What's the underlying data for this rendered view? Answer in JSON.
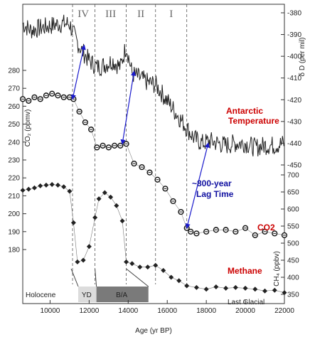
{
  "chart_data": {
    "type": "line",
    "xlabel": "Age (yr BP)",
    "xlim": [
      8600,
      22000
    ],
    "x_ticks": [
      10000,
      12000,
      14000,
      16000,
      18000,
      20000,
      22000
    ],
    "period_lines": [
      11150,
      12300,
      13900,
      15400,
      17000
    ],
    "period_labels": [
      {
        "label": "IV",
        "x": 11700
      },
      {
        "label": "III",
        "x": 13100
      },
      {
        "label": "II",
        "x": 14650
      },
      {
        "label": "I",
        "x": 16200
      }
    ],
    "axes": {
      "dD": {
        "label": "δ D (per mil)",
        "side": "right",
        "ticks": [
          -380,
          -390,
          -400,
          -410,
          -420,
          -430,
          -440,
          -450
        ]
      },
      "co2": {
        "label": "CO₂ (ppmv)",
        "side": "left",
        "ticks": [
          280,
          270,
          260,
          250,
          240,
          230,
          220,
          210,
          200,
          190,
          180
        ]
      },
      "ch4": {
        "label": "CH₄ (ppbv)",
        "side": "right",
        "ticks": [
          700,
          650,
          600,
          550,
          500,
          450,
          400,
          350
        ]
      }
    },
    "series": [
      {
        "name": "Antarctic Temperature",
        "axis": "dD",
        "x": [
          8600,
          9000,
          9500,
          10000,
          10500,
          11000,
          11300,
          11600,
          12000,
          12400,
          12800,
          13200,
          13600,
          13900,
          14200,
          14600,
          15000,
          15400,
          15800,
          16200,
          16600,
          17000,
          17400,
          17800,
          18200,
          18600,
          19000,
          19500,
          20000,
          20500,
          21000,
          21500,
          22000
        ],
        "values": [
          -385,
          -388,
          -387,
          -386,
          -385,
          -385,
          -392,
          -397,
          -402,
          -405,
          -404,
          -402,
          -405,
          -395,
          -408,
          -410,
          -412,
          -413,
          -418,
          -423,
          -428,
          -433,
          -438,
          -440,
          -439,
          -440,
          -441,
          -440,
          -440,
          -442,
          -441,
          -441,
          -440
        ]
      },
      {
        "name": "CO2",
        "axis": "co2",
        "x": [
          8600,
          8900,
          9200,
          9500,
          9800,
          10100,
          10400,
          10700,
          11000,
          11200,
          11500,
          11800,
          12100,
          12400,
          12700,
          13000,
          13300,
          13600,
          13900,
          14300,
          14700,
          15100,
          15500,
          15900,
          16300,
          16700,
          17000,
          17200,
          17500,
          18000,
          18500,
          19000,
          19500,
          20000,
          20500,
          21000,
          21500,
          22000
        ],
        "values": [
          264,
          263,
          265,
          264,
          266,
          267,
          266,
          265,
          265,
          264,
          257,
          251,
          247,
          237,
          238,
          237,
          238,
          238,
          239,
          228,
          226,
          223,
          219,
          214,
          207,
          201,
          192,
          190,
          189,
          190,
          191,
          191,
          190,
          192,
          188,
          190,
          189,
          188
        ]
      },
      {
        "name": "Methane",
        "axis": "ch4",
        "x": [
          8600,
          8900,
          9200,
          9500,
          9800,
          10100,
          10400,
          10700,
          11000,
          11200,
          11400,
          11700,
          12000,
          12300,
          12500,
          12800,
          13100,
          13400,
          13700,
          13900,
          14200,
          14600,
          15000,
          15400,
          15800,
          16200,
          16600,
          17000,
          17500,
          18000,
          18500,
          19000,
          19500,
          20000,
          20500,
          21000,
          21500,
          22000
        ],
        "values": [
          655,
          658,
          662,
          668,
          670,
          672,
          670,
          665,
          652,
          560,
          445,
          450,
          490,
          575,
          630,
          648,
          635,
          610,
          565,
          445,
          440,
          430,
          430,
          435,
          420,
          400,
          390,
          375,
          370,
          365,
          372,
          368,
          370,
          368,
          365,
          360,
          362,
          355
        ]
      }
    ],
    "annotations": {
      "temperature": "Antarctic\nTemperature",
      "lag": "~800-year\nLag Time",
      "co2": "CO2",
      "methane": "Methane"
    },
    "bottom_bands": {
      "holocene": "Holocene",
      "yd": "YD",
      "ba": "B/A",
      "glacial": "Last Glacial"
    },
    "colors": {
      "temperature_label": "#cc0000",
      "lag_label": "#1010a0",
      "arrow": "#1a1acc"
    }
  }
}
